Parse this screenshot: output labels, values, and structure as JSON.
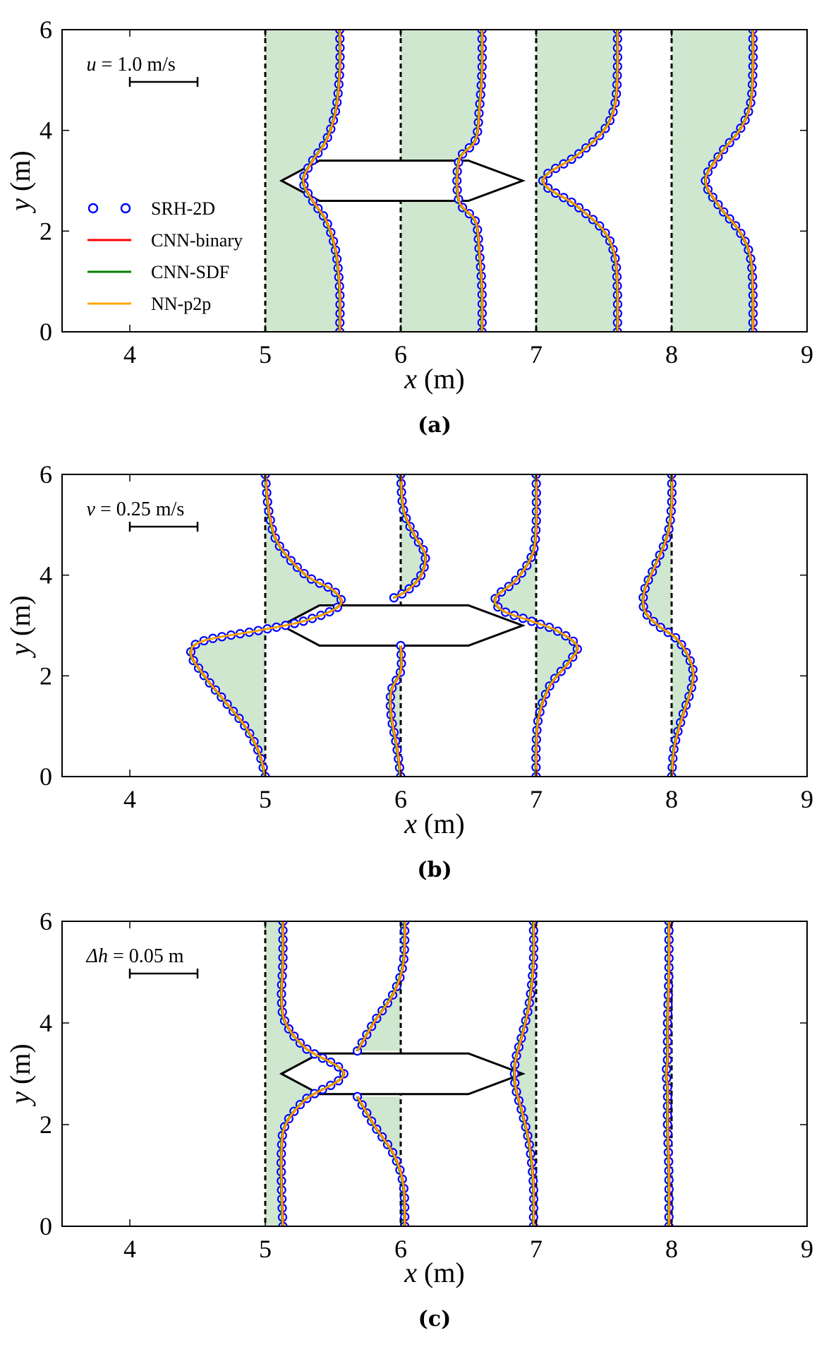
{
  "chart_data": [
    {
      "type": "line",
      "panel_label": "(a)",
      "xlabel_var": "x",
      "xlabel_unit": " (m)",
      "ylabel_var": "y",
      "ylabel_unit": " (m)",
      "xlim": [
        3.5,
        9
      ],
      "ylim": [
        0,
        6
      ],
      "xticks": [
        "4",
        "5",
        "6",
        "7",
        "8",
        "9"
      ],
      "yticks": [
        "0",
        "2",
        "4",
        "6"
      ],
      "grid": false,
      "scale_bar": {
        "var": "u",
        "text": " = 1.0 m/s",
        "length_x": 0.5
      },
      "legend": {
        "placement": "left",
        "entries": [
          {
            "label": "SRH-2D",
            "style": "circles",
            "color": "#0000ff"
          },
          {
            "label": "CNN-binary",
            "style": "line",
            "color": "#ff0000"
          },
          {
            "label": "CNN-SDF",
            "style": "line",
            "color": "#008000"
          },
          {
            "label": "NN-p2p",
            "style": "line",
            "color": "#ffa500"
          }
        ]
      },
      "obstacle": [
        [
          5.12,
          3.0
        ],
        [
          5.4,
          3.4
        ],
        [
          6.5,
          3.4
        ],
        [
          6.9,
          3.0
        ],
        [
          6.5,
          2.6
        ],
        [
          5.4,
          2.6
        ]
      ],
      "fill_color": "#cfe6cf",
      "profiles": [
        {
          "x0": 5,
          "points": [
            [
              5.55,
              0
            ],
            [
              5.55,
              0.8
            ],
            [
              5.52,
              1.6
            ],
            [
              5.45,
              2.2
            ],
            [
              5.35,
              2.6
            ],
            [
              5.28,
              3.0
            ],
            [
              5.35,
              3.4
            ],
            [
              5.45,
              3.8
            ],
            [
              5.52,
              4.4
            ],
            [
              5.55,
              5.2
            ],
            [
              5.55,
              6
            ]
          ]
        },
        {
          "x0": 6,
          "points": [
            [
              6.6,
              0
            ],
            [
              6.6,
              0.8
            ],
            [
              6.58,
              1.6
            ],
            [
              6.55,
              2.2
            ],
            [
              6.43,
              2.6
            ],
            [
              6.43,
              3.4
            ],
            [
              6.55,
              3.8
            ],
            [
              6.58,
              4.4
            ],
            [
              6.6,
              5.2
            ],
            [
              6.6,
              6
            ]
          ]
        },
        {
          "x0": 7,
          "points": [
            [
              7.6,
              0
            ],
            [
              7.6,
              0.8
            ],
            [
              7.58,
              1.5
            ],
            [
              7.5,
              2.0
            ],
            [
              7.3,
              2.5
            ],
            [
              7.05,
              3.0
            ],
            [
              7.3,
              3.5
            ],
            [
              7.5,
              4.0
            ],
            [
              7.58,
              4.5
            ],
            [
              7.6,
              5.2
            ],
            [
              7.6,
              6
            ]
          ]
        },
        {
          "x0": 8,
          "points": [
            [
              8.6,
              0
            ],
            [
              8.6,
              0.8
            ],
            [
              8.58,
              1.5
            ],
            [
              8.5,
              2.0
            ],
            [
              8.35,
              2.5
            ],
            [
              8.25,
              3.0
            ],
            [
              8.35,
              3.5
            ],
            [
              8.5,
              4.0
            ],
            [
              8.58,
              4.5
            ],
            [
              8.6,
              5.2
            ],
            [
              8.6,
              6
            ]
          ]
        }
      ]
    },
    {
      "type": "line",
      "panel_label": "(b)",
      "xlabel_var": "x",
      "xlabel_unit": " (m)",
      "ylabel_var": "y",
      "ylabel_unit": " (m)",
      "xlim": [
        3.5,
        9
      ],
      "ylim": [
        0,
        6
      ],
      "xticks": [
        "4",
        "5",
        "6",
        "7",
        "8",
        "9"
      ],
      "yticks": [
        "0",
        "2",
        "4",
        "6"
      ],
      "grid": false,
      "scale_bar": {
        "var": "v",
        "text": " = 0.25 m/s",
        "length_x": 0.5
      },
      "obstacle": [
        [
          5.12,
          3.0
        ],
        [
          5.4,
          3.4
        ],
        [
          6.5,
          3.4
        ],
        [
          6.9,
          3.0
        ],
        [
          6.5,
          2.6
        ],
        [
          5.4,
          2.6
        ]
      ],
      "fill_color": "#cfe6cf",
      "profiles": [
        {
          "x0": 5,
          "points": [
            [
              5.0,
              0
            ],
            [
              4.95,
              0.5
            ],
            [
              4.85,
              1.0
            ],
            [
              4.7,
              1.5
            ],
            [
              4.55,
              2.0
            ],
            [
              4.45,
              2.45
            ],
            [
              4.55,
              2.7
            ],
            [
              4.95,
              2.9
            ],
            [
              5.3,
              3.1
            ],
            [
              5.55,
              3.4
            ],
            [
              5.5,
              3.7
            ],
            [
              5.3,
              4.0
            ],
            [
              5.1,
              4.6
            ],
            [
              5.03,
              5.2
            ],
            [
              5.0,
              6
            ]
          ]
        },
        {
          "x0": 6,
          "points": [
            [
              6.0,
              0
            ],
            [
              5.97,
              0.6
            ],
            [
              5.93,
              1.2
            ],
            [
              5.93,
              1.7
            ],
            [
              6.0,
              2.1
            ],
            [
              6.0,
              2.6
            ]
          ]
        },
        {
          "x0": 6,
          "points": [
            [
              5.95,
              3.55
            ],
            [
              6.05,
              3.7
            ],
            [
              6.15,
              4.0
            ],
            [
              6.18,
              4.4
            ],
            [
              6.1,
              4.8
            ],
            [
              6.02,
              5.3
            ],
            [
              6.0,
              6
            ]
          ]
        },
        {
          "x0": 7,
          "points": [
            [
              7.0,
              0
            ],
            [
              7.0,
              0.6
            ],
            [
              7.02,
              1.2
            ],
            [
              7.1,
              1.8
            ],
            [
              7.25,
              2.3
            ],
            [
              7.3,
              2.6
            ],
            [
              7.15,
              2.9
            ],
            [
              6.95,
              3.1
            ],
            [
              6.75,
              3.3
            ],
            [
              6.7,
              3.55
            ],
            [
              6.85,
              3.9
            ],
            [
              6.97,
              4.4
            ],
            [
              7.0,
              5.0
            ],
            [
              7.0,
              6
            ]
          ]
        },
        {
          "x0": 8,
          "points": [
            [
              8.0,
              0
            ],
            [
              8.02,
              0.6
            ],
            [
              8.08,
              1.2
            ],
            [
              8.15,
              1.8
            ],
            [
              8.15,
              2.2
            ],
            [
              8.05,
              2.7
            ],
            [
              7.9,
              3.0
            ],
            [
              7.8,
              3.3
            ],
            [
              7.8,
              3.7
            ],
            [
              7.88,
              4.2
            ],
            [
              7.97,
              4.8
            ],
            [
              8.0,
              5.4
            ],
            [
              8.0,
              6
            ]
          ]
        }
      ]
    },
    {
      "type": "line",
      "panel_label": "(c)",
      "xlabel_var": "x",
      "xlabel_unit": " (m)",
      "ylabel_var": "y",
      "ylabel_unit": " (m)",
      "xlim": [
        3.5,
        9
      ],
      "ylim": [
        0,
        6
      ],
      "xticks": [
        "4",
        "5",
        "6",
        "7",
        "8",
        "9"
      ],
      "yticks": [
        "0",
        "2",
        "4",
        "6"
      ],
      "grid": false,
      "scale_bar": {
        "var": "Δh",
        "text": " = 0.05 m",
        "length_x": 0.5
      },
      "obstacle": [
        [
          5.12,
          3.0
        ],
        [
          5.4,
          3.4
        ],
        [
          6.5,
          3.4
        ],
        [
          6.9,
          3.0
        ],
        [
          6.5,
          2.6
        ],
        [
          5.4,
          2.6
        ]
      ],
      "fill_color": "#cfe6cf",
      "profiles": [
        {
          "x0": 5,
          "points": [
            [
              5.13,
              0
            ],
            [
              5.12,
              0.8
            ],
            [
              5.12,
              1.5
            ],
            [
              5.15,
              2.0
            ],
            [
              5.3,
              2.5
            ],
            [
              5.58,
              3.0
            ],
            [
              5.3,
              3.5
            ],
            [
              5.15,
              4.0
            ],
            [
              5.12,
              4.5
            ],
            [
              5.13,
              5.2
            ],
            [
              5.13,
              6
            ]
          ]
        },
        {
          "x0": 6,
          "points": [
            [
              6.03,
              0
            ],
            [
              6.02,
              0.8
            ],
            [
              5.95,
              1.4
            ],
            [
              5.8,
              2.0
            ],
            [
              5.68,
              2.55
            ]
          ]
        },
        {
          "x0": 6,
          "points": [
            [
              5.68,
              3.45
            ],
            [
              5.8,
              4.0
            ],
            [
              5.95,
              4.6
            ],
            [
              6.02,
              5.2
            ],
            [
              6.03,
              6
            ]
          ]
        },
        {
          "x0": 7,
          "points": [
            [
              6.98,
              0
            ],
            [
              6.98,
              0.8
            ],
            [
              6.95,
              1.6
            ],
            [
              6.9,
              2.2
            ],
            [
              6.85,
              2.7
            ],
            [
              6.84,
              3.0
            ],
            [
              6.85,
              3.3
            ],
            [
              6.9,
              3.8
            ],
            [
              6.95,
              4.4
            ],
            [
              6.98,
              5.2
            ],
            [
              6.98,
              6
            ]
          ]
        },
        {
          "x0": 8,
          "points": [
            [
              7.98,
              0
            ],
            [
              7.98,
              1.0
            ],
            [
              7.97,
              2.0
            ],
            [
              7.97,
              2.7
            ],
            [
              7.96,
              3.0
            ],
            [
              7.97,
              3.3
            ],
            [
              7.97,
              4.0
            ],
            [
              7.98,
              5.0
            ],
            [
              7.98,
              6
            ]
          ]
        }
      ]
    }
  ]
}
